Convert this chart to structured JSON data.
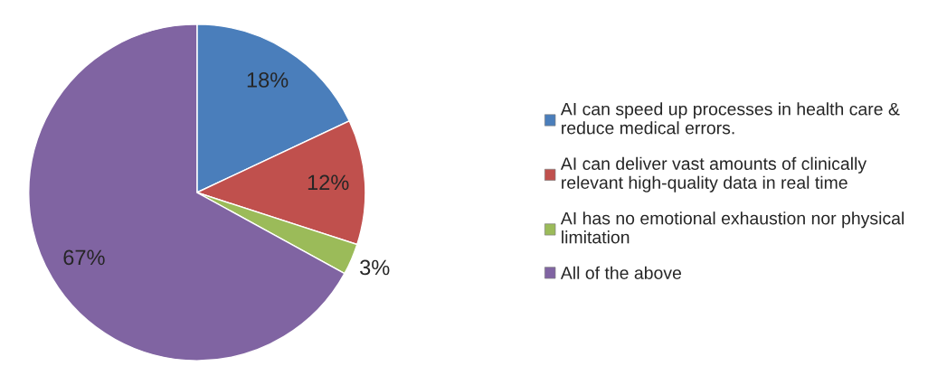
{
  "chart_data": {
    "type": "pie",
    "categories": [
      "AI can speed up processes in health care & reduce medical errors.",
      "AI can deliver vast amounts of clinically relevant high-quality data in real time",
      "AI has no emotional exhaustion nor physical limitation",
      "All of the above"
    ],
    "values": [
      18,
      12,
      3,
      67
    ],
    "colors": [
      "#4a7ebb",
      "#c0504d",
      "#9bbb59",
      "#8064a2"
    ],
    "value_labels": [
      "18%",
      "12%",
      "3%",
      "67%"
    ],
    "legend": "right"
  }
}
